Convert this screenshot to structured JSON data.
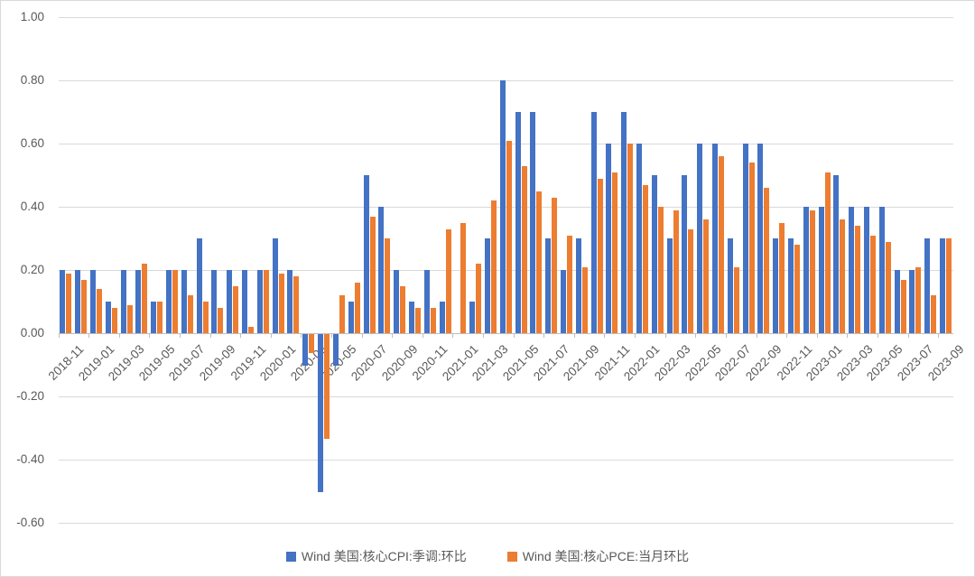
{
  "chart_data": {
    "type": "bar",
    "title": "",
    "xlabel": "",
    "ylabel": "",
    "categories": [
      "2018-11",
      "2018-12",
      "2019-01",
      "2019-02",
      "2019-03",
      "2019-04",
      "2019-05",
      "2019-06",
      "2019-07",
      "2019-08",
      "2019-09",
      "2019-10",
      "2019-11",
      "2019-12",
      "2020-01",
      "2020-02",
      "2020-03",
      "2020-04",
      "2020-05",
      "2020-06",
      "2020-07",
      "2020-08",
      "2020-09",
      "2020-10",
      "2020-11",
      "2020-12",
      "2021-01",
      "2021-02",
      "2021-03",
      "2021-04",
      "2021-05",
      "2021-06",
      "2021-07",
      "2021-08",
      "2021-09",
      "2021-10",
      "2021-11",
      "2021-12",
      "2022-01",
      "2022-02",
      "2022-03",
      "2022-04",
      "2022-05",
      "2022-06",
      "2022-07",
      "2022-08",
      "2022-09",
      "2022-10",
      "2022-11",
      "2022-12",
      "2023-01",
      "2023-02",
      "2023-03",
      "2023-04",
      "2023-05",
      "2023-06",
      "2023-07",
      "2023-08",
      "2023-09"
    ],
    "series": [
      {
        "name": "Wind 美国:核心CPI:季调:环比",
        "color": "#4472C4",
        "values": [
          0.2,
          0.2,
          0.2,
          0.1,
          0.2,
          0.2,
          0.1,
          0.2,
          0.2,
          0.3,
          0.2,
          0.2,
          0.2,
          0.2,
          0.3,
          0.2,
          -0.1,
          -0.5,
          -0.1,
          0.1,
          0.5,
          0.4,
          0.2,
          0.1,
          0.2,
          0.1,
          0.0,
          0.1,
          0.3,
          0.8,
          0.7,
          0.7,
          0.3,
          0.2,
          0.3,
          0.7,
          0.6,
          0.7,
          0.6,
          0.5,
          0.3,
          0.5,
          0.6,
          0.6,
          0.3,
          0.6,
          0.6,
          0.3,
          0.3,
          0.4,
          0.4,
          0.5,
          0.4,
          0.4,
          0.4,
          0.2,
          0.2,
          0.3,
          0.3
        ]
      },
      {
        "name": "Wind 美国:核心PCE:当月环比",
        "color": "#ED7D31",
        "values": [
          0.19,
          0.17,
          0.14,
          0.08,
          0.09,
          0.22,
          0.1,
          0.2,
          0.12,
          0.1,
          0.08,
          0.15,
          0.02,
          0.2,
          0.19,
          0.18,
          -0.06,
          -0.33,
          0.12,
          0.16,
          0.37,
          0.3,
          0.15,
          0.08,
          0.08,
          0.33,
          0.35,
          0.22,
          0.42,
          0.61,
          0.53,
          0.45,
          0.43,
          0.31,
          0.21,
          0.49,
          0.51,
          0.6,
          0.47,
          0.4,
          0.39,
          0.33,
          0.36,
          0.56,
          0.21,
          0.54,
          0.46,
          0.35,
          0.28,
          0.39,
          0.51,
          0.36,
          0.34,
          0.31,
          0.29,
          0.17,
          0.21,
          0.12,
          0.3
        ]
      }
    ],
    "ylim": [
      -0.6,
      1.0
    ],
    "ytick_step": 0.2,
    "ytick_labels": [
      "1.00",
      "0.80",
      "0.60",
      "0.40",
      "0.20",
      "0.00",
      "-0.20",
      "-0.40",
      "-0.60"
    ],
    "xtick_label_every": 2,
    "grid": true,
    "legend_position": "bottom"
  },
  "colors": {
    "background": "#FFFFFF",
    "border": "#D9D9D9",
    "gridline": "#D9D9D9",
    "axis_line": "#BFBFBF",
    "tick_text": "#595959",
    "legend_text": "#595959",
    "cpi_bar": "#4472C4",
    "pce_bar": "#ED7D31"
  }
}
